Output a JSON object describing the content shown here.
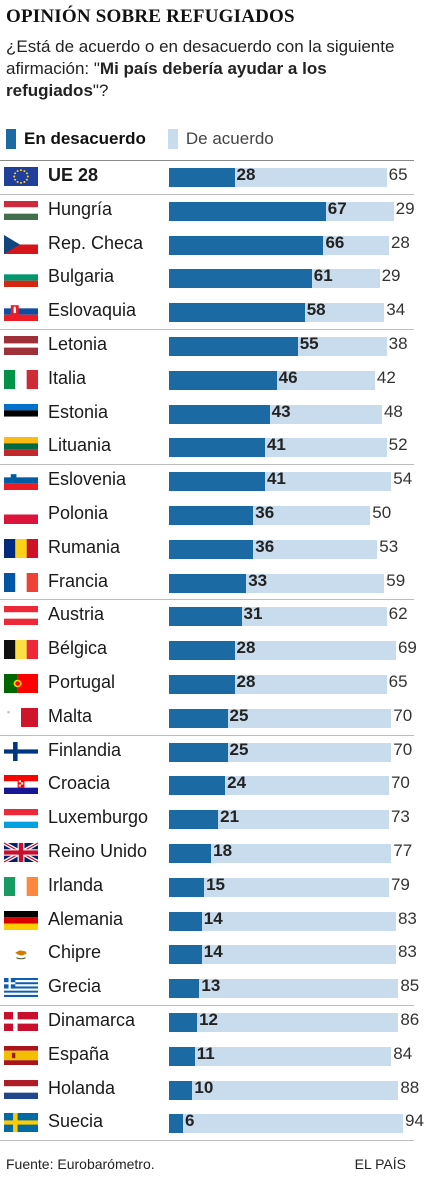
{
  "header": {
    "title": "OPINIÓN SOBRE REFUGIADOS",
    "subtitle_pre": "¿Está de acuerdo o en desacuerdo con la siguiente afirmación: \"",
    "subtitle_bold": "Mi país debería ayudar a los refugiados",
    "subtitle_post": "\"?"
  },
  "legend": {
    "disagree_label": "En desacuerdo",
    "agree_label": "De acuerdo"
  },
  "colors": {
    "disagree": "#1c6aa3",
    "agree": "#c9dced"
  },
  "footer": {
    "source": "Fuente: Eurobarómetro.",
    "brand": "EL PAÍS"
  },
  "chart_data": {
    "type": "bar",
    "orientation": "horizontal",
    "stacked": true,
    "xlim": [
      0,
      100
    ],
    "categories": [
      "UE 28",
      "Hungría",
      "Rep. Checa",
      "Bulgaria",
      "Eslovaquia",
      "Letonia",
      "Italia",
      "Estonia",
      "Lituania",
      "Eslovenia",
      "Polonia",
      "Rumania",
      "Francia",
      "Austria",
      "Bélgica",
      "Portugal",
      "Malta",
      "Finlandia",
      "Croacia",
      "Luxemburgo",
      "Reino Unido",
      "Irlanda",
      "Alemania",
      "Chipre",
      "Grecia",
      "Dinamarca",
      "España",
      "Holanda",
      "Suecia"
    ],
    "series": [
      {
        "name": "En desacuerdo",
        "values": [
          28,
          67,
          66,
          61,
          58,
          55,
          46,
          43,
          41,
          41,
          36,
          36,
          33,
          31,
          28,
          28,
          25,
          25,
          24,
          21,
          18,
          15,
          14,
          14,
          13,
          12,
          11,
          10,
          6
        ]
      },
      {
        "name": "De acuerdo",
        "values": [
          65,
          29,
          28,
          29,
          34,
          38,
          42,
          48,
          52,
          54,
          50,
          53,
          59,
          62,
          69,
          65,
          70,
          70,
          70,
          73,
          77,
          79,
          83,
          83,
          85,
          86,
          84,
          88,
          94
        ]
      }
    ],
    "flags": [
      "eu",
      "hu",
      "cz",
      "bg",
      "sk",
      "lv",
      "it",
      "ee",
      "lt",
      "si",
      "pl",
      "ro",
      "fr",
      "at",
      "be",
      "pt",
      "mt",
      "fi",
      "hr",
      "lu",
      "gb",
      "ie",
      "de",
      "cy",
      "gr",
      "dk",
      "es",
      "nl",
      "se"
    ],
    "group_breaks_before": [
      1,
      5,
      9,
      13,
      17,
      25
    ]
  }
}
